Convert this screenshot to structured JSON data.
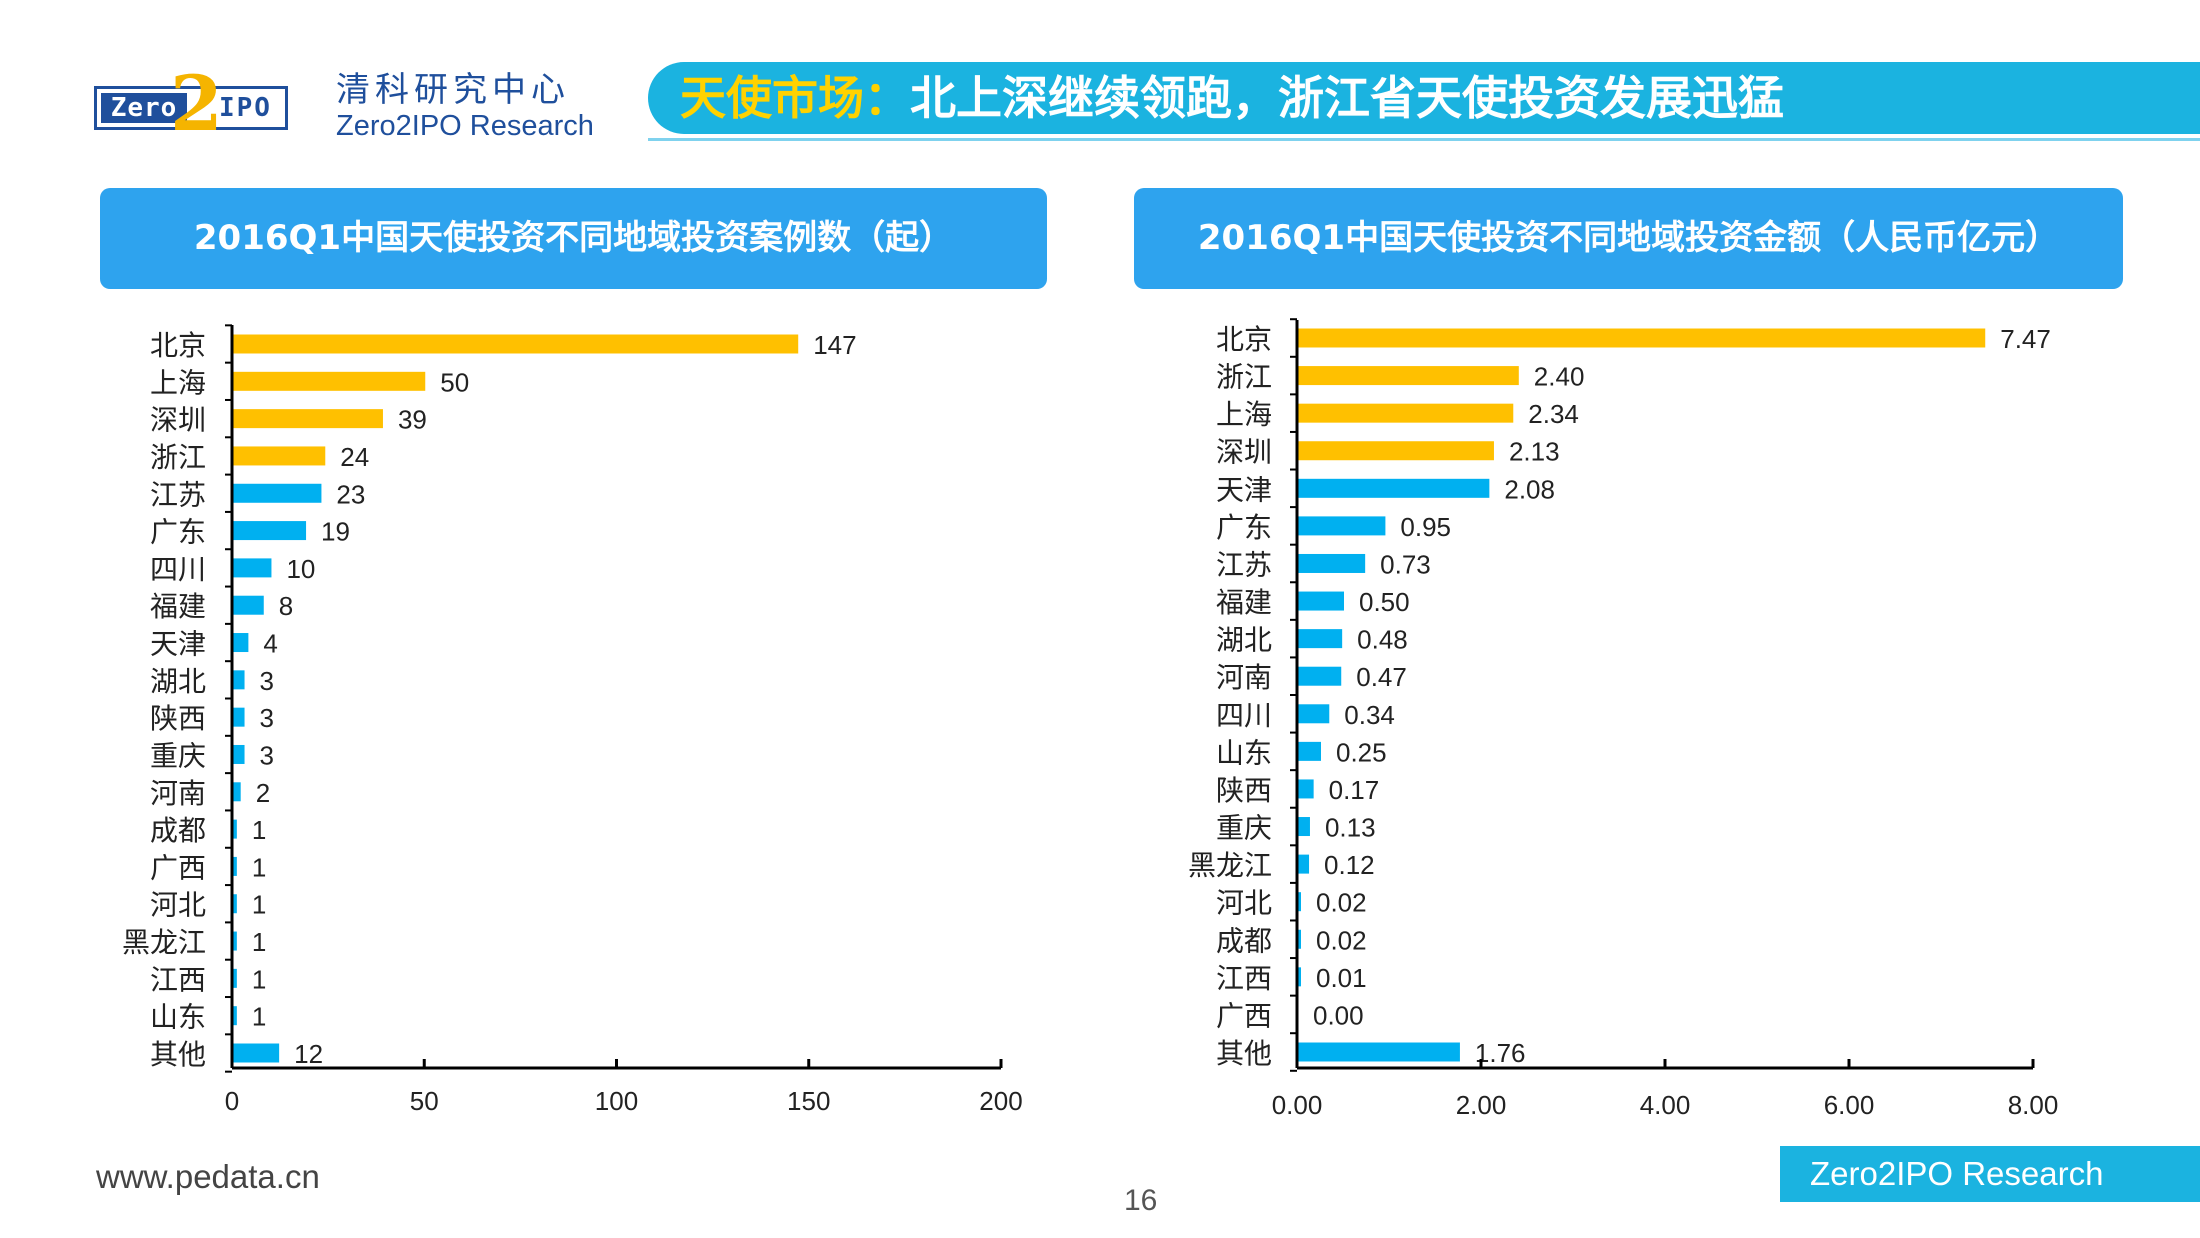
{
  "header": {
    "org_cn": "清科研究中心",
    "org_en": "Zero2IPO Research",
    "logo_text": "Zero2IPO",
    "title_highlight": "天使市场：",
    "title_rest": "北上深继续领跑，浙江省天使投资发展迅猛"
  },
  "footer": {
    "url": "www.pedata.cn",
    "page_number": "16",
    "brand": "Zero2IPO Research"
  },
  "colors": {
    "highlight_bar": "#FFC000",
    "normal_bar": "#00B0F0",
    "header_panel": "#2EA3EE",
    "banner": "#1BB3E0"
  },
  "chart_data": [
    {
      "type": "bar",
      "orientation": "horizontal",
      "title": "2016Q1中国天使投资不同地域投资案例数（起）",
      "categories": [
        "北京",
        "上海",
        "深圳",
        "浙江",
        "江苏",
        "广东",
        "四川",
        "福建",
        "天津",
        "湖北",
        "陕西",
        "重庆",
        "河南",
        "成都",
        "广西",
        "河北",
        "黑龙江",
        "江西",
        "山东",
        "其他"
      ],
      "values": [
        147,
        50,
        39,
        24,
        23,
        19,
        10,
        8,
        4,
        3,
        3,
        3,
        2,
        1,
        1,
        1,
        1,
        1,
        1,
        12
      ],
      "value_labels": [
        "147",
        "50",
        "39",
        "24",
        "23",
        "19",
        "10",
        "8",
        "4",
        "3",
        "3",
        "3",
        "2",
        "1",
        "1",
        "1",
        "1",
        "1",
        "1",
        "12"
      ],
      "highlight_count": 4,
      "xlim": [
        0,
        200
      ],
      "ticks": [
        0,
        50,
        100,
        150,
        200
      ],
      "tick_labels": [
        "0",
        "50",
        "100",
        "150",
        "200"
      ],
      "grid": false
    },
    {
      "type": "bar",
      "orientation": "horizontal",
      "title": "2016Q1中国天使投资不同地域投资金额（人民币亿元）",
      "categories": [
        "北京",
        "浙江",
        "上海",
        "深圳",
        "天津",
        "广东",
        "江苏",
        "福建",
        "湖北",
        "河南",
        "四川",
        "山东",
        "陕西",
        "重庆",
        "黑龙江",
        "河北",
        "成都",
        "江西",
        "广西",
        "其他"
      ],
      "values": [
        7.47,
        2.4,
        2.34,
        2.13,
        2.08,
        0.95,
        0.73,
        0.5,
        0.48,
        0.47,
        0.34,
        0.25,
        0.17,
        0.13,
        0.12,
        0.02,
        0.02,
        0.01,
        0.0,
        1.76
      ],
      "value_labels": [
        "7.47",
        "2.40",
        "2.34",
        "2.13",
        "2.08",
        "0.95",
        "0.73",
        "0.50",
        "0.48",
        "0.47",
        "0.34",
        "0.25",
        "0.17",
        "0.13",
        "0.12",
        "0.02",
        "0.02",
        "0.01",
        "0.00",
        "1.76"
      ],
      "highlight_count": 4,
      "xlim": [
        0,
        8
      ],
      "ticks": [
        0,
        2,
        4,
        6,
        8
      ],
      "tick_labels": [
        "0.00",
        "2.00",
        "4.00",
        "6.00",
        "8.00"
      ],
      "grid": false
    }
  ]
}
